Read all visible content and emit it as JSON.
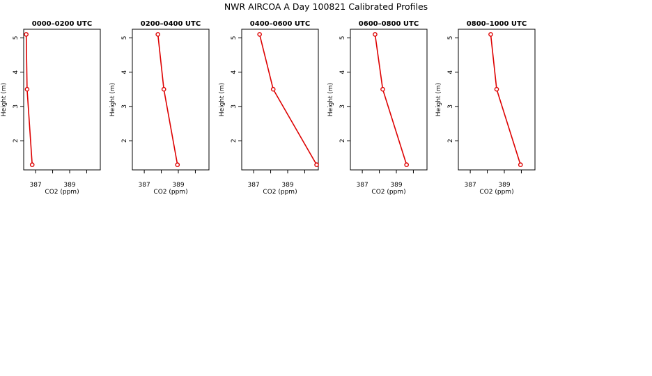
{
  "title": "NWR AIRCOA A  Day 100821  Calibrated Profiles",
  "chart_data": [
    {
      "type": "line",
      "title": "0000–0200 UTC",
      "xlabel": "CO2 (ppm)",
      "ylabel": "Height (m)",
      "xlim": [
        386.3,
        390.8
      ],
      "ylim": [
        1.15,
        5.25
      ],
      "xticks": [
        386,
        387,
        388,
        389,
        390
      ],
      "xtick_labels": [
        "387",
        "389"
      ],
      "yticks": [
        2,
        3,
        4,
        5
      ],
      "series": [
        {
          "color": "#dd0000",
          "points": [
            [
              386.45,
              5.1
            ],
            [
              386.5,
              3.5
            ],
            [
              386.8,
              1.3
            ]
          ]
        }
      ]
    },
    {
      "type": "line",
      "title": "0200–0400 UTC",
      "xlabel": "CO2 (ppm)",
      "ylabel": "Height (m)",
      "xlim": [
        386.3,
        390.8
      ],
      "ylim": [
        1.15,
        5.25
      ],
      "xticks": [
        386,
        387,
        388,
        389,
        390
      ],
      "xtick_labels": [
        "387",
        "389"
      ],
      "yticks": [
        2,
        3,
        4,
        5
      ],
      "series": [
        {
          "color": "#dd0000",
          "points": [
            [
              387.8,
              5.1
            ],
            [
              388.15,
              3.5
            ],
            [
              388.95,
              1.3
            ]
          ]
        }
      ]
    },
    {
      "type": "line",
      "title": "0400–0600 UTC",
      "xlabel": "CO2 (ppm)",
      "ylabel": "Height (m)",
      "xlim": [
        386.3,
        390.8
      ],
      "ylim": [
        1.15,
        5.25
      ],
      "xticks": [
        386,
        387,
        388,
        389,
        390
      ],
      "xtick_labels": [
        "387",
        "389"
      ],
      "yticks": [
        2,
        3,
        4,
        5
      ],
      "series": [
        {
          "color": "#dd0000",
          "points": [
            [
              387.35,
              5.1
            ],
            [
              388.15,
              3.5
            ],
            [
              390.7,
              1.3
            ]
          ]
        }
      ]
    },
    {
      "type": "line",
      "title": "0600–0800 UTC",
      "xlabel": "CO2 (ppm)",
      "ylabel": "Height (m)",
      "xlim": [
        386.3,
        390.8
      ],
      "ylim": [
        1.15,
        5.25
      ],
      "xticks": [
        386,
        387,
        388,
        389,
        390
      ],
      "xtick_labels": [
        "387",
        "389"
      ],
      "yticks": [
        2,
        3,
        4,
        5
      ],
      "series": [
        {
          "color": "#dd0000",
          "points": [
            [
              387.75,
              5.1
            ],
            [
              388.2,
              3.5
            ],
            [
              389.6,
              1.3
            ]
          ]
        }
      ]
    },
    {
      "type": "line",
      "title": "0800–1000 UTC",
      "xlabel": "CO2 (ppm)",
      "ylabel": "Height (m)",
      "xlim": [
        386.3,
        390.8
      ],
      "ylim": [
        1.15,
        5.25
      ],
      "xticks": [
        386,
        387,
        388,
        389,
        390
      ],
      "xtick_labels": [
        "387",
        "389"
      ],
      "yticks": [
        2,
        3,
        4,
        5
      ],
      "series": [
        {
          "color": "#dd0000",
          "points": [
            [
              388.2,
              5.1
            ],
            [
              388.55,
              3.5
            ],
            [
              389.95,
              1.3
            ]
          ]
        }
      ]
    }
  ]
}
